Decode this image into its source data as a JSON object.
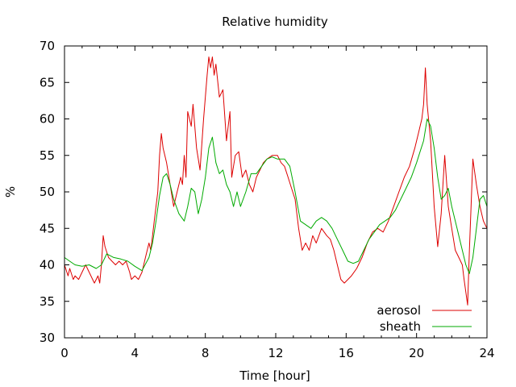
{
  "chart_data": {
    "type": "line",
    "title": "Relative humidity",
    "xlabel": "Time [hour]",
    "ylabel": "%",
    "xlim": [
      0,
      24
    ],
    "ylim": [
      30,
      70
    ],
    "xticks": [
      0,
      4,
      8,
      12,
      16,
      20,
      24
    ],
    "yticks": [
      30,
      35,
      40,
      45,
      50,
      55,
      60,
      65,
      70
    ],
    "xtick_labels": [
      "0",
      "4",
      "8",
      "12",
      "16",
      "20",
      "24"
    ],
    "ytick_labels": [
      "30",
      "35",
      "40",
      "45",
      "50",
      "55",
      "60",
      "65",
      "70"
    ],
    "grid": false,
    "legend_position": "bottom-right",
    "series": [
      {
        "name": "aerosol",
        "color": "#dd0000",
        "x": [
          0,
          0.2,
          0.3,
          0.5,
          0.6,
          0.8,
          1.0,
          1.2,
          1.4,
          1.6,
          1.7,
          1.9,
          2.0,
          2.1,
          2.2,
          2.3,
          2.5,
          2.7,
          2.9,
          3.1,
          3.3,
          3.5,
          3.7,
          3.8,
          4.0,
          4.2,
          4.4,
          4.6,
          4.8,
          4.9,
          5.0,
          5.1,
          5.3,
          5.4,
          5.5,
          5.6,
          5.8,
          6.0,
          6.2,
          6.4,
          6.6,
          6.7,
          6.8,
          6.9,
          7.0,
          7.2,
          7.3,
          7.5,
          7.7,
          7.9,
          8.1,
          8.2,
          8.3,
          8.4,
          8.5,
          8.6,
          8.8,
          9.0,
          9.2,
          9.4,
          9.5,
          9.7,
          9.9,
          10.1,
          10.3,
          10.5,
          10.7,
          10.9,
          11.1,
          11.3,
          11.5,
          11.8,
          12.1,
          12.3,
          12.5,
          12.7,
          12.9,
          13.1,
          13.3,
          13.5,
          13.7,
          13.9,
          14.1,
          14.3,
          14.6,
          14.9,
          15.1,
          15.3,
          15.5,
          15.7,
          15.9,
          16.1,
          16.3,
          16.6,
          16.9,
          17.2,
          17.5,
          17.8,
          18.1,
          18.4,
          18.7,
          19.0,
          19.3,
          19.6,
          19.9,
          20.1,
          20.3,
          20.4,
          20.5,
          20.6,
          20.8,
          21.0,
          21.2,
          21.4,
          21.5,
          21.6,
          21.8,
          22.0,
          22.2,
          22.4,
          22.6,
          22.7,
          22.9,
          23.0,
          23.2,
          23.4,
          23.6,
          23.8,
          24.0
        ],
        "y": [
          40.0,
          38.5,
          39.5,
          38.0,
          38.5,
          38.0,
          39.0,
          40.0,
          39.0,
          38.0,
          37.5,
          38.5,
          37.5,
          40.0,
          44.0,
          42.5,
          41.0,
          40.5,
          40.0,
          40.5,
          40.0,
          40.5,
          39.0,
          38.0,
          38.5,
          38.0,
          39.0,
          41.0,
          43.0,
          42.0,
          44.0,
          46.0,
          50.0,
          55.0,
          58.0,
          56.0,
          54.0,
          51.0,
          48.0,
          50.0,
          52.0,
          51.0,
          55.0,
          52.0,
          61.0,
          59.0,
          62.0,
          56.0,
          53.0,
          60.0,
          66.0,
          68.5,
          67.0,
          68.5,
          66.0,
          67.5,
          63.0,
          64.0,
          57.0,
          61.0,
          52.0,
          55.0,
          55.5,
          52.0,
          53.0,
          51.0,
          50.0,
          52.0,
          53.0,
          54.0,
          54.5,
          55.0,
          55.0,
          54.0,
          53.5,
          52.0,
          50.5,
          49.0,
          45.0,
          42.0,
          43.0,
          42.0,
          44.0,
          43.0,
          45.0,
          44.0,
          43.5,
          42.0,
          40.0,
          38.0,
          37.5,
          38.0,
          38.5,
          39.5,
          41.0,
          43.0,
          44.5,
          45.0,
          44.5,
          46.0,
          48.0,
          50.0,
          52.0,
          53.5,
          56.0,
          58.0,
          60.0,
          62.0,
          67.0,
          62.0,
          57.0,
          48.0,
          42.5,
          47.0,
          51.0,
          55.0,
          48.0,
          45.0,
          42.0,
          41.0,
          40.0,
          38.0,
          34.5,
          42.0,
          54.5,
          51.0,
          48.0,
          46.0,
          45.0
        ]
      },
      {
        "name": "sheath",
        "color": "#00aa00",
        "x": [
          0,
          0.3,
          0.6,
          1.0,
          1.4,
          1.8,
          2.1,
          2.4,
          2.8,
          3.2,
          3.6,
          4.0,
          4.4,
          4.8,
          5.0,
          5.2,
          5.4,
          5.6,
          5.8,
          6.0,
          6.2,
          6.5,
          6.8,
          7.0,
          7.2,
          7.4,
          7.6,
          7.8,
          8.0,
          8.2,
          8.4,
          8.6,
          8.8,
          9.0,
          9.2,
          9.4,
          9.6,
          9.8,
          10.0,
          10.3,
          10.6,
          10.9,
          11.2,
          11.5,
          11.8,
          12.1,
          12.5,
          12.8,
          13.1,
          13.4,
          13.7,
          14.0,
          14.3,
          14.6,
          14.9,
          15.2,
          15.5,
          15.8,
          16.1,
          16.4,
          16.7,
          17.0,
          17.3,
          17.6,
          17.9,
          18.2,
          18.5,
          18.8,
          19.1,
          19.4,
          19.7,
          20.0,
          20.2,
          20.4,
          20.6,
          20.8,
          21.0,
          21.2,
          21.4,
          21.6,
          21.8,
          22.0,
          22.3,
          22.6,
          22.8,
          23.0,
          23.2,
          23.4,
          23.6,
          23.8,
          24.0
        ],
        "y": [
          41.0,
          40.5,
          40.0,
          39.8,
          40.0,
          39.5,
          40.0,
          41.5,
          41.0,
          40.8,
          40.5,
          39.8,
          39.2,
          41.0,
          43.0,
          46.0,
          49.5,
          52.0,
          52.5,
          51.0,
          49.0,
          47.0,
          46.0,
          48.0,
          50.5,
          50.0,
          47.0,
          49.0,
          52.0,
          56.0,
          57.5,
          54.0,
          52.5,
          53.0,
          51.0,
          50.0,
          48.0,
          50.0,
          48.0,
          50.0,
          52.5,
          52.5,
          53.5,
          54.5,
          54.8,
          54.5,
          54.5,
          53.5,
          50.0,
          46.0,
          45.5,
          45.0,
          46.0,
          46.5,
          46.0,
          45.0,
          43.5,
          42.0,
          40.5,
          40.2,
          40.5,
          42.0,
          43.5,
          44.5,
          45.5,
          46.0,
          46.5,
          47.5,
          49.0,
          50.5,
          52.0,
          54.0,
          55.5,
          57.0,
          60.0,
          59.0,
          56.0,
          52.0,
          49.0,
          49.5,
          50.5,
          48.0,
          45.0,
          42.0,
          40.0,
          38.8,
          41.0,
          45.0,
          49.0,
          49.5,
          48.0
        ]
      }
    ]
  }
}
